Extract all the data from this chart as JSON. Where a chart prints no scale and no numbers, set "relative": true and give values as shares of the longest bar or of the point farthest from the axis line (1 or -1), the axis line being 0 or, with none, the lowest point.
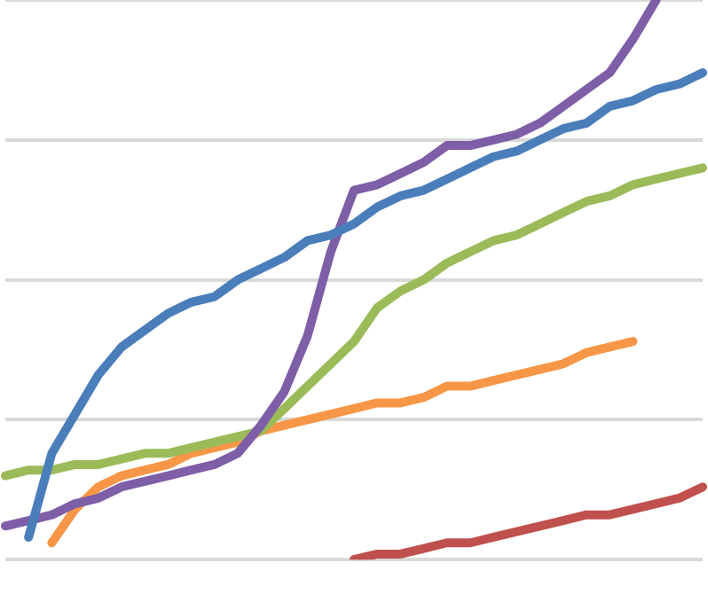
{
  "chart_data": {
    "type": "line",
    "relative": true,
    "grid": "y",
    "legend": false,
    "marker": "none",
    "line_style": "solid",
    "categories": [
      null,
      null,
      null,
      null,
      null,
      null,
      null,
      null,
      null,
      null,
      null,
      null,
      null,
      null,
      null,
      null,
      null,
      null,
      null,
      null,
      null,
      null,
      null,
      null,
      null,
      null,
      null,
      null,
      null,
      null,
      null
    ],
    "series": [
      {
        "color": "#4a7ebb",
        "values": [
          null,
          0.04,
          0.19,
          0.26,
          0.33,
          0.38,
          0.41,
          0.44,
          0.46,
          0.47,
          0.5,
          0.52,
          0.54,
          0.57,
          0.58,
          0.6,
          0.63,
          0.65,
          0.66,
          0.68,
          0.7,
          0.72,
          0.73,
          0.75,
          0.77,
          0.78,
          0.81,
          0.82,
          0.84,
          0.85,
          0.87
        ]
      },
      {
        "color": "#7e5ea7",
        "values": [
          0.06,
          0.07,
          0.08,
          0.1,
          0.11,
          0.13,
          0.14,
          0.15,
          0.16,
          0.17,
          0.19,
          0.24,
          0.3,
          0.4,
          0.55,
          0.66,
          0.67,
          0.69,
          0.71,
          0.74,
          0.74,
          0.75,
          0.76,
          0.78,
          0.81,
          0.84,
          0.87,
          0.93,
          1,
          null,
          null
        ]
      },
      {
        "color": "#9bbb59",
        "values": [
          0.15,
          0.16,
          0.16,
          0.17,
          0.17,
          0.18,
          0.19,
          0.19,
          0.2,
          0.21,
          0.22,
          0.23,
          0.27,
          0.31,
          0.35,
          0.39,
          0.45,
          0.48,
          0.5,
          0.53,
          0.55,
          0.57,
          0.58,
          0.6,
          0.62,
          0.64,
          0.65,
          0.67,
          0.68,
          0.69,
          0.7
        ]
      },
      {
        "color": "#f79646",
        "values": [
          null,
          null,
          0.03,
          0.09,
          0.13,
          0.15,
          0.16,
          0.17,
          0.19,
          0.2,
          0.21,
          0.23,
          0.24,
          0.25,
          0.26,
          0.27,
          0.28,
          0.28,
          0.29,
          0.31,
          0.31,
          0.32,
          0.33,
          0.34,
          0.35,
          0.37,
          0.38,
          0.39,
          null,
          null,
          null
        ]
      },
      {
        "color": "#c0504d",
        "values": [
          null,
          null,
          null,
          null,
          null,
          null,
          null,
          null,
          null,
          null,
          null,
          null,
          null,
          null,
          null,
          0,
          0.01,
          0.01,
          0.02,
          0.03,
          0.03,
          0.04,
          0.05,
          0.06,
          0.07,
          0.08,
          0.08,
          0.09,
          0.1,
          0.11,
          0.13
        ]
      }
    ]
  }
}
